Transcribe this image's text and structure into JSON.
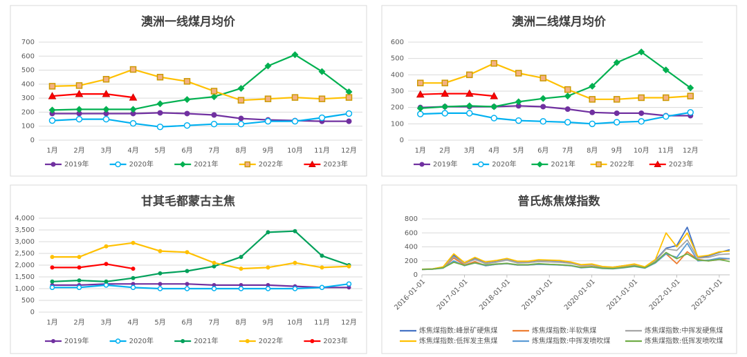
{
  "chart_data": [
    {
      "type": "line",
      "title": "澳洲一线煤月均价",
      "categories": [
        "1月",
        "2月",
        "3月",
        "4月",
        "5月",
        "6月",
        "7月",
        "8月",
        "9月",
        "10月",
        "11月",
        "12月"
      ],
      "ylim": [
        0,
        700
      ],
      "yticks": [
        0,
        100,
        200,
        300,
        400,
        500,
        600,
        700
      ],
      "grid": true,
      "series": [
        {
          "name": "2019年",
          "color": "#7030a0",
          "marker": "circle",
          "values": [
            190,
            190,
            190,
            190,
            195,
            190,
            180,
            155,
            145,
            140,
            135,
            135
          ]
        },
        {
          "name": "2020年",
          "color": "#00b0f0",
          "marker": "open-circle",
          "values": [
            140,
            150,
            150,
            120,
            95,
            105,
            115,
            115,
            135,
            135,
            160,
            190
          ]
        },
        {
          "name": "2021年",
          "color": "#00b050",
          "marker": "diamond",
          "values": [
            215,
            220,
            220,
            220,
            260,
            290,
            310,
            370,
            530,
            610,
            490,
            345
          ]
        },
        {
          "name": "2022年",
          "color": "#ffc000",
          "marker": "square",
          "values": [
            385,
            390,
            435,
            505,
            450,
            420,
            350,
            285,
            295,
            305,
            295,
            305
          ]
        },
        {
          "name": "2023年",
          "color": "#ff0000",
          "marker": "triangle",
          "values": [
            315,
            330,
            330,
            305,
            null,
            null,
            null,
            null,
            null,
            null,
            null,
            null
          ]
        }
      ]
    },
    {
      "type": "line",
      "title": "澳洲二线煤月均价",
      "categories": [
        "1月",
        "2月",
        "3月",
        "4月",
        "5月",
        "6月",
        "7月",
        "8月",
        "9月",
        "10月",
        "11月",
        "12月"
      ],
      "ylim": [
        0,
        600
      ],
      "yticks": [
        0,
        100,
        200,
        300,
        400,
        500,
        600
      ],
      "grid": true,
      "series": [
        {
          "name": "2019年",
          "color": "#7030a0",
          "marker": "circle",
          "values": [
            200,
            205,
            205,
            205,
            210,
            205,
            190,
            170,
            165,
            165,
            150,
            150
          ]
        },
        {
          "name": "2020年",
          "color": "#00b0f0",
          "marker": "open-circle",
          "values": [
            160,
            165,
            165,
            135,
            120,
            115,
            110,
            100,
            110,
            115,
            145,
            170
          ]
        },
        {
          "name": "2021年",
          "color": "#00b050",
          "marker": "diamond",
          "values": [
            195,
            205,
            210,
            205,
            235,
            255,
            270,
            330,
            475,
            540,
            430,
            320
          ]
        },
        {
          "name": "2022年",
          "color": "#ffc000",
          "marker": "square",
          "values": [
            350,
            350,
            400,
            470,
            410,
            380,
            310,
            250,
            250,
            260,
            260,
            270
          ]
        },
        {
          "name": "2023年",
          "color": "#ff0000",
          "marker": "triangle",
          "values": [
            280,
            285,
            285,
            270,
            null,
            null,
            null,
            null,
            null,
            null,
            null,
            null
          ]
        }
      ]
    },
    {
      "type": "line",
      "title": "甘其毛都蒙古主焦",
      "categories": [
        "1月",
        "2月",
        "3月",
        "4月",
        "5月",
        "6月",
        "7月",
        "8月",
        "9月",
        "10月",
        "11月",
        "12月"
      ],
      "ylim": [
        0,
        4000
      ],
      "yticks": [
        0,
        {
          "value": 500,
          "label": "500"
        },
        {
          "value": 1000,
          "label": "1,000"
        },
        {
          "value": 1500,
          "label": "1,500"
        },
        {
          "value": 2000,
          "label": "2,000"
        },
        {
          "value": 2500,
          "label": "2,500"
        },
        {
          "value": 3000,
          "label": "3,000"
        },
        {
          "value": 3500,
          "label": "3,500"
        },
        {
          "value": 4000,
          "label": "4,000"
        }
      ],
      "grid": true,
      "series": [
        {
          "name": "2019年",
          "color": "#7030a0",
          "marker": "circle",
          "values": [
            1150,
            1150,
            1200,
            1200,
            1200,
            1200,
            1150,
            1150,
            1150,
            1100,
            1050,
            1050
          ]
        },
        {
          "name": "2020年",
          "color": "#00b0f0",
          "marker": "open-circle",
          "values": [
            1050,
            1050,
            1150,
            1050,
            1000,
            1000,
            1000,
            1000,
            1000,
            1000,
            1050,
            1200
          ]
        },
        {
          "name": "2021年",
          "color": "#00a05a",
          "marker": "circle",
          "values": [
            1300,
            1350,
            1300,
            1450,
            1650,
            1750,
            1950,
            2350,
            3400,
            3450,
            2400,
            2000
          ]
        },
        {
          "name": "2022年",
          "color": "#ffc000",
          "marker": "circle",
          "values": [
            2350,
            2350,
            2800,
            2950,
            2600,
            2550,
            2100,
            1850,
            1900,
            2100,
            1900,
            1950
          ]
        },
        {
          "name": "2023年",
          "color": "#ff0000",
          "marker": "circle",
          "values": [
            1900,
            1900,
            2050,
            1850,
            null,
            null,
            null,
            null,
            null,
            null,
            null,
            null
          ]
        }
      ]
    },
    {
      "type": "date-line",
      "title": "普氏炼焦煤指数",
      "x": [
        "2016-01-01",
        "2016-04-01",
        "2016-07-01",
        "2016-10-01",
        "2017-01-01",
        "2017-04-01",
        "2017-07-01",
        "2017-10-01",
        "2018-01-01",
        "2018-04-01",
        "2018-07-01",
        "2018-10-01",
        "2019-01-01",
        "2019-04-01",
        "2019-07-01",
        "2019-10-01",
        "2020-01-01",
        "2020-04-01",
        "2020-07-01",
        "2020-10-01",
        "2021-01-01",
        "2021-04-01",
        "2021-07-01",
        "2021-10-01",
        "2022-01-01",
        "2022-04-01",
        "2022-07-01",
        "2022-10-01",
        "2023-01-01",
        "2023-04-01"
      ],
      "xlim": [
        "2016-01-01",
        "2023-04-01"
      ],
      "xticks": [
        "2016-01-01",
        "2017-01-01",
        "2018-01-01",
        "2019-01-01",
        "2020-01-01",
        "2021-01-01",
        "2022-01-01",
        "2023-01-01"
      ],
      "ylim": [
        0,
        800
      ],
      "yticks": [
        0,
        200,
        400,
        600,
        800
      ],
      "grid": true,
      "series": [
        {
          "name": "炼焦煤指数:峰景矿硬焦煤",
          "color": "#4472c4",
          "values": [
            80,
            85,
            110,
            280,
            170,
            240,
            180,
            200,
            230,
            190,
            190,
            210,
            205,
            200,
            180,
            140,
            150,
            115,
            110,
            130,
            150,
            110,
            210,
            380,
            420,
            680,
            250,
            270,
            320,
            360
          ]
        },
        {
          "name": "炼焦煤指数:半软焦煤",
          "color": "#ed7d31",
          "values": [
            75,
            80,
            100,
            240,
            140,
            190,
            130,
            150,
            160,
            140,
            140,
            150,
            150,
            140,
            130,
            110,
            120,
            100,
            95,
            110,
            130,
            110,
            180,
            300,
            160,
            330,
            220,
            200,
            220,
            230
          ]
        },
        {
          "name": "炼焦煤指数:中挥发硬焦煤",
          "color": "#a5a5a5",
          "values": [
            78,
            82,
            105,
            260,
            160,
            220,
            160,
            180,
            210,
            170,
            175,
            190,
            185,
            180,
            165,
            130,
            140,
            110,
            105,
            125,
            145,
            110,
            200,
            370,
            350,
            500,
            240,
            250,
            290,
            300
          ]
        },
        {
          "name": "炼焦煤指数:低挥发主焦煤",
          "color": "#ffc000",
          "values": [
            80,
            85,
            115,
            300,
            175,
            250,
            185,
            205,
            235,
            195,
            195,
            215,
            210,
            205,
            185,
            145,
            155,
            120,
            110,
            130,
            155,
            115,
            220,
            600,
            400,
            600,
            260,
            280,
            330,
            340
          ]
        },
        {
          "name": "炼焦煤指数:中挥发喷吹煤",
          "color": "#5b9bd5",
          "values": [
            75,
            80,
            95,
            200,
            130,
            170,
            130,
            150,
            160,
            140,
            140,
            150,
            145,
            140,
            130,
            100,
            110,
            90,
            85,
            100,
            120,
            95,
            170,
            300,
            250,
            450,
            200,
            210,
            240,
            230
          ]
        },
        {
          "name": "炼焦煤指数:低挥发喷吹煤",
          "color": "#70ad47",
          "values": [
            78,
            82,
            100,
            180,
            135,
            170,
            140,
            155,
            165,
            145,
            145,
            160,
            150,
            145,
            135,
            105,
            115,
            95,
            90,
            105,
            125,
            100,
            180,
            320,
            230,
            300,
            210,
            200,
            220,
            190
          ]
        }
      ]
    }
  ]
}
